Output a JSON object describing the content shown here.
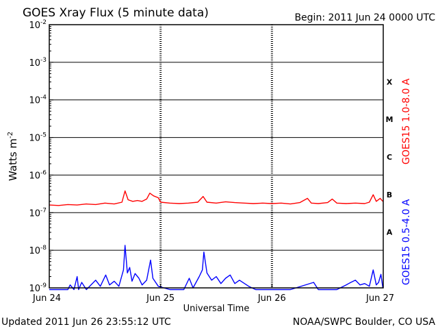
{
  "chart_data": {
    "type": "line",
    "title": "GOES Xray Flux (5 minute data)",
    "begin_label": "Begin:  2011 Jun 24 0000 UTC",
    "ylabel": "Watts m",
    "ylabel_sup": "-2",
    "xlabel": "Universal Time",
    "y_scale": "log",
    "ylim": [
      1e-09,
      0.01
    ],
    "y_ticks": [
      {
        "base": "10",
        "exp": "-2",
        "value": 0.01
      },
      {
        "base": "10",
        "exp": "-3",
        "value": 0.001
      },
      {
        "base": "10",
        "exp": "-4",
        "value": 0.0001
      },
      {
        "base": "10",
        "exp": "-5",
        "value": 1e-05
      },
      {
        "base": "10",
        "exp": "-6",
        "value": 1e-06
      },
      {
        "base": "10",
        "exp": "-7",
        "value": 1e-07
      },
      {
        "base": "10",
        "exp": "-8",
        "value": 1e-08
      },
      {
        "base": "10",
        "exp": "-9",
        "value": 1e-09
      }
    ],
    "xlim": [
      "2011-06-24 00:00",
      "2011-06-27 00:00"
    ],
    "x_ticks": [
      {
        "label": "Jun 24",
        "value": "2011-06-24 00:00"
      },
      {
        "label": "Jun 25",
        "value": "2011-06-25 00:00"
      },
      {
        "label": "Jun 26",
        "value": "2011-06-26 00:00"
      },
      {
        "label": "Jun 27",
        "value": "2011-06-27 00:00"
      }
    ],
    "flare_classes": [
      {
        "label": "X",
        "low": 0.0001,
        "high": 0.001
      },
      {
        "label": "M",
        "low": 1e-05,
        "high": 0.0001
      },
      {
        "label": "C",
        "low": 1e-06,
        "high": 1e-05
      },
      {
        "label": "B",
        "low": 1e-07,
        "high": 1e-06
      },
      {
        "label": "A",
        "low": 1e-08,
        "high": 1e-07
      }
    ],
    "grid": true,
    "series": [
      {
        "name": "GOES15 1.0-8.0 A",
        "color": "#ff0000",
        "points": [
          [
            "2011-06-24 00:00",
            1.6e-07
          ],
          [
            "2011-06-24 02:00",
            1.55e-07
          ],
          [
            "2011-06-24 04:00",
            1.65e-07
          ],
          [
            "2011-06-24 06:00",
            1.6e-07
          ],
          [
            "2011-06-24 08:00",
            1.7e-07
          ],
          [
            "2011-06-24 10:00",
            1.65e-07
          ],
          [
            "2011-06-24 12:00",
            1.8e-07
          ],
          [
            "2011-06-24 14:00",
            1.7e-07
          ],
          [
            "2011-06-24 15:40",
            1.9e-07
          ],
          [
            "2011-06-24 16:20",
            3.8e-07
          ],
          [
            "2011-06-24 17:00",
            2.2e-07
          ],
          [
            "2011-06-24 18:00",
            2e-07
          ],
          [
            "2011-06-24 19:00",
            2.1e-07
          ],
          [
            "2011-06-24 20:00",
            2e-07
          ],
          [
            "2011-06-24 21:00",
            2.3e-07
          ],
          [
            "2011-06-24 21:40",
            3.3e-07
          ],
          [
            "2011-06-24 22:30",
            2.8e-07
          ],
          [
            "2011-06-24 23:30",
            2.5e-07
          ],
          [
            "2011-06-25 00:00",
            1.9e-07
          ],
          [
            "2011-06-25 02:00",
            1.8e-07
          ],
          [
            "2011-06-25 04:00",
            1.75e-07
          ],
          [
            "2011-06-25 06:00",
            1.8e-07
          ],
          [
            "2011-06-25 08:00",
            1.9e-07
          ],
          [
            "2011-06-25 09:10",
            2.7e-07
          ],
          [
            "2011-06-25 10:00",
            1.9e-07
          ],
          [
            "2011-06-25 12:00",
            1.8e-07
          ],
          [
            "2011-06-25 14:00",
            1.95e-07
          ],
          [
            "2011-06-25 16:00",
            1.85e-07
          ],
          [
            "2011-06-25 18:00",
            1.8e-07
          ],
          [
            "2011-06-25 20:00",
            1.75e-07
          ],
          [
            "2011-06-25 22:00",
            1.8e-07
          ],
          [
            "2011-06-26 00:00",
            1.75e-07
          ],
          [
            "2011-06-26 02:00",
            1.8e-07
          ],
          [
            "2011-06-26 04:00",
            1.7e-07
          ],
          [
            "2011-06-26 06:00",
            1.85e-07
          ],
          [
            "2011-06-26 07:40",
            2.4e-07
          ],
          [
            "2011-06-26 08:30",
            1.8e-07
          ],
          [
            "2011-06-26 10:00",
            1.75e-07
          ],
          [
            "2011-06-26 12:00",
            1.85e-07
          ],
          [
            "2011-06-26 13:00",
            2.3e-07
          ],
          [
            "2011-06-26 14:00",
            1.8e-07
          ],
          [
            "2011-06-26 16:00",
            1.75e-07
          ],
          [
            "2011-06-26 18:00",
            1.8e-07
          ],
          [
            "2011-06-26 20:00",
            1.75e-07
          ],
          [
            "2011-06-26 21:00",
            1.9e-07
          ],
          [
            "2011-06-26 21:50",
            3e-07
          ],
          [
            "2011-06-26 22:30",
            2e-07
          ],
          [
            "2011-06-26 23:20",
            2.4e-07
          ],
          [
            "2011-06-26 23:55",
            2e-07
          ]
        ]
      },
      {
        "name": "GOES15 0.5-4.0 A",
        "color": "#0000ff",
        "points": [
          [
            "2011-06-24 00:00",
            9e-10
          ],
          [
            "2011-06-24 04:00",
            9e-10
          ],
          [
            "2011-06-24 04:30",
            1.2e-09
          ],
          [
            "2011-06-24 05:20",
            9e-10
          ],
          [
            "2011-06-24 06:00",
            2e-09
          ],
          [
            "2011-06-24 06:20",
            9e-10
          ],
          [
            "2011-06-24 07:00",
            1.4e-09
          ],
          [
            "2011-06-24 08:00",
            9e-10
          ],
          [
            "2011-06-24 10:00",
            1.6e-09
          ],
          [
            "2011-06-24 11:00",
            1.1e-09
          ],
          [
            "2011-06-24 12:10",
            2.2e-09
          ],
          [
            "2011-06-24 13:00",
            1.2e-09
          ],
          [
            "2011-06-24 14:00",
            1.5e-09
          ],
          [
            "2011-06-24 15:00",
            1.1e-09
          ],
          [
            "2011-06-24 16:00",
            3e-09
          ],
          [
            "2011-06-24 16:20",
            1.35e-08
          ],
          [
            "2011-06-24 16:50",
            2.5e-09
          ],
          [
            "2011-06-24 17:20",
            3.5e-09
          ],
          [
            "2011-06-24 17:50",
            1.5e-09
          ],
          [
            "2011-06-24 18:30",
            2.4e-09
          ],
          [
            "2011-06-24 19:20",
            1.8e-09
          ],
          [
            "2011-06-24 20:00",
            1.2e-09
          ],
          [
            "2011-06-24 21:00",
            1.6e-09
          ],
          [
            "2011-06-24 21:50",
            5.5e-09
          ],
          [
            "2011-06-24 22:20",
            1.8e-09
          ],
          [
            "2011-06-24 23:30",
            1.1e-09
          ],
          [
            "2011-06-25 02:00",
            9e-10
          ],
          [
            "2011-06-25 05:00",
            9e-10
          ],
          [
            "2011-06-25 06:10",
            1.8e-09
          ],
          [
            "2011-06-25 07:00",
            1e-09
          ],
          [
            "2011-06-25 08:20",
            2e-09
          ],
          [
            "2011-06-25 09:00",
            3e-09
          ],
          [
            "2011-06-25 09:20",
            9e-09
          ],
          [
            "2011-06-25 10:00",
            2.5e-09
          ],
          [
            "2011-06-25 11:00",
            1.6e-09
          ],
          [
            "2011-06-25 12:00",
            2e-09
          ],
          [
            "2011-06-25 13:00",
            1.3e-09
          ],
          [
            "2011-06-25 14:00",
            1.8e-09
          ],
          [
            "2011-06-25 15:00",
            2.2e-09
          ],
          [
            "2011-06-25 16:00",
            1.3e-09
          ],
          [
            "2011-06-25 17:00",
            1.6e-09
          ],
          [
            "2011-06-25 19:00",
            1.1e-09
          ],
          [
            "2011-06-25 20:30",
            9e-10
          ],
          [
            "2011-06-26 00:00",
            9e-10
          ],
          [
            "2011-06-26 04:00",
            9e-10
          ],
          [
            "2011-06-26 09:00",
            1.4e-09
          ],
          [
            "2011-06-26 10:00",
            9e-10
          ],
          [
            "2011-06-26 14:00",
            9e-10
          ],
          [
            "2011-06-26 16:00",
            1.2e-09
          ],
          [
            "2011-06-26 17:00",
            1.4e-09
          ],
          [
            "2011-06-26 18:00",
            1.6e-09
          ],
          [
            "2011-06-26 19:00",
            1.2e-09
          ],
          [
            "2011-06-26 20:00",
            1.3e-09
          ],
          [
            "2011-06-26 21:00",
            1.1e-09
          ],
          [
            "2011-06-26 21:50",
            3e-09
          ],
          [
            "2011-06-26 22:30",
            1.2e-09
          ],
          [
            "2011-06-26 23:00",
            1.4e-09
          ],
          [
            "2011-06-26 23:30",
            2.3e-09
          ],
          [
            "2011-06-26 23:55",
            1e-09
          ]
        ]
      }
    ]
  },
  "footer": {
    "updated": "Updated 2011 Jun 26 23:55:12 UTC",
    "source": "NOAA/SWPC Boulder, CO USA"
  }
}
